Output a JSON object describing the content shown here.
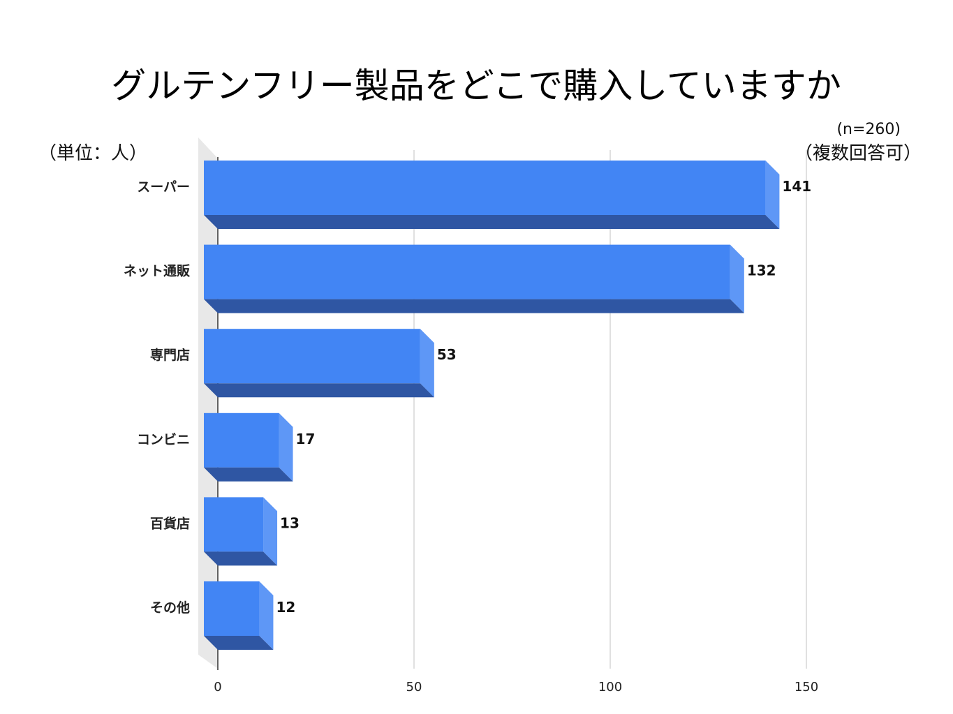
{
  "chart_data": {
    "type": "bar",
    "orientation": "horizontal",
    "title": "グルテンフリー製品をどこで購入していますか",
    "unit_note": "（単位：人）",
    "sample_note": "(n=260)",
    "multi_answer_note": "（複数回答可）",
    "categories": [
      "スーパー",
      "ネット通販",
      "専門店",
      "コンビニ",
      "百貨店",
      "その他"
    ],
    "values": [
      141,
      132,
      53,
      17,
      13,
      12
    ],
    "x_ticks": [
      0,
      50,
      100,
      150
    ],
    "xlim": [
      0,
      150
    ],
    "xlabel": "",
    "ylabel": "",
    "grid": true,
    "colors": {
      "bar_front": "#4285f4",
      "bar_side": "#5e97f6",
      "bar_bottom": "#2f56a3",
      "floor": "#e8e8e8",
      "gridline": "#cccccc",
      "axis": "#333333"
    }
  }
}
